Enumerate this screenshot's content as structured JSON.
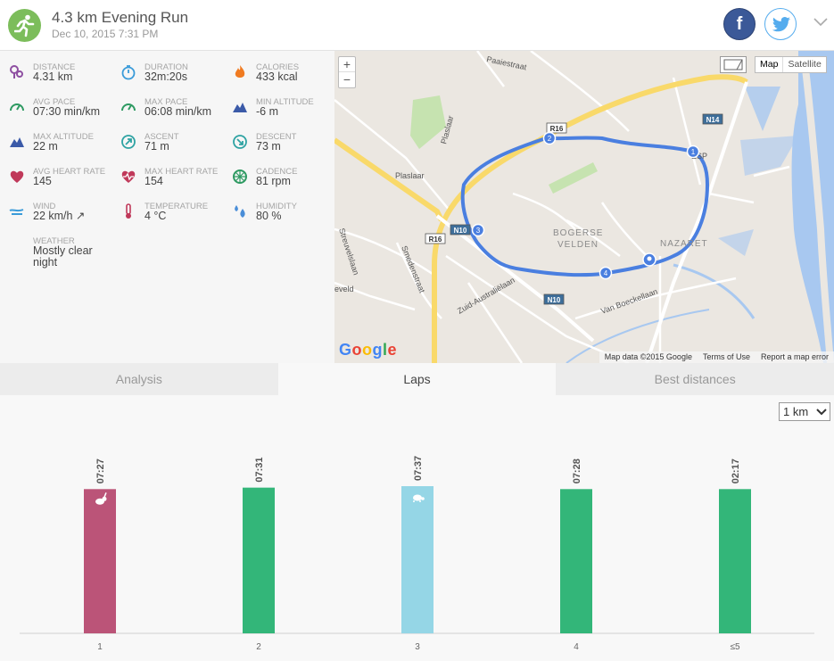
{
  "header": {
    "title": "4.3 km Evening Run",
    "date": "Dec 10, 2015 7:31 PM",
    "facebook_label": "f"
  },
  "stats": [
    {
      "label": "DISTANCE",
      "value": "4.31 km",
      "icon": "distance-pin-icon",
      "color": "#8e4fa1"
    },
    {
      "label": "DURATION",
      "value": "32m:20s",
      "icon": "stopwatch-icon",
      "color": "#3a9bd9"
    },
    {
      "label": "CALORIES",
      "value": "433 kcal",
      "icon": "flame-icon",
      "color": "#f07b21"
    },
    {
      "label": "AVG PACE",
      "value": "07:30 min/km",
      "icon": "speedometer-icon",
      "color": "#2e9a62"
    },
    {
      "label": "MAX PACE",
      "value": "06:08 min/km",
      "icon": "speedometer-icon",
      "color": "#2e9a62"
    },
    {
      "label": "MIN ALTITUDE",
      "value": "-6 m",
      "icon": "mountain-icon",
      "color": "#3b5aa8"
    },
    {
      "label": "MAX ALTITUDE",
      "value": "22 m",
      "icon": "mountain-icon",
      "color": "#3b5aa8"
    },
    {
      "label": "ASCENT",
      "value": "71 m",
      "icon": "ascent-icon",
      "color": "#2fa3a3"
    },
    {
      "label": "DESCENT",
      "value": "73 m",
      "icon": "descent-icon",
      "color": "#2fa3a3"
    },
    {
      "label": "AVG HEART RATE",
      "value": "145",
      "icon": "heart-icon",
      "color": "#c0395a"
    },
    {
      "label": "MAX HEART RATE",
      "value": "154",
      "icon": "heart-pulse-icon",
      "color": "#c0395a"
    },
    {
      "label": "CADENCE",
      "value": "81 rpm",
      "icon": "cadence-wheel-icon",
      "color": "#2e9a62"
    },
    {
      "label": "WIND",
      "value": "22 km/h ↗",
      "icon": "wind-icon",
      "color": "#3a9bd9"
    },
    {
      "label": "TEMPERATURE",
      "value": "4 °C",
      "icon": "thermometer-icon",
      "color": "#c0395a"
    },
    {
      "label": "HUMIDITY",
      "value": "80 %",
      "icon": "humidity-drops-icon",
      "color": "#4a8ed8"
    },
    {
      "label": "WEATHER",
      "value": "Mostly clear night",
      "icon": "moon-icon",
      "color": "#f1c40f"
    }
  ],
  "map": {
    "zoom_in": "+",
    "zoom_out": "−",
    "type_map": "Map",
    "type_satellite": "Satellite",
    "logo": "Google",
    "attribution": [
      "Map data ©2015 Google",
      "Terms of Use",
      "Report a map error"
    ],
    "street_labels": [
      "Paaiestraat",
      "Plaslaar",
      "Plaslaar",
      "Streuvelslaan",
      "Smedenstraat",
      "Zuid-Australiëlaan",
      "Van Boeckellaan",
      "eveld",
      "BOGERSE",
      "VELDEN",
      "NAZARET",
      "ESP"
    ],
    "road_shields": [
      "R16",
      "R16",
      "N10",
      "N10",
      "N14"
    ],
    "lap_markers": [
      "1",
      "2",
      "3",
      "4"
    ],
    "route_color": "#4a7fe0"
  },
  "tabs": [
    {
      "label": "Analysis",
      "active": false
    },
    {
      "label": "Laps",
      "active": true
    },
    {
      "label": "Best distances",
      "active": false
    }
  ],
  "lap_select": {
    "value": "1 km"
  },
  "chart_data": {
    "type": "bar",
    "categories": [
      "1",
      "2",
      "3",
      "4",
      "≤5"
    ],
    "values": [
      "07:27",
      "07:31",
      "07:37",
      "07:28",
      "02:17"
    ],
    "colors": [
      "#bb5478",
      "#33b679",
      "#95d6e6",
      "#33b679",
      "#33b679"
    ],
    "markers": [
      "rabbit-icon",
      "",
      "turtle-icon",
      "",
      ""
    ],
    "relative_heights": [
      0.98,
      0.99,
      1.0,
      0.98,
      0.98
    ],
    "xlabel": "",
    "ylabel": ""
  }
}
